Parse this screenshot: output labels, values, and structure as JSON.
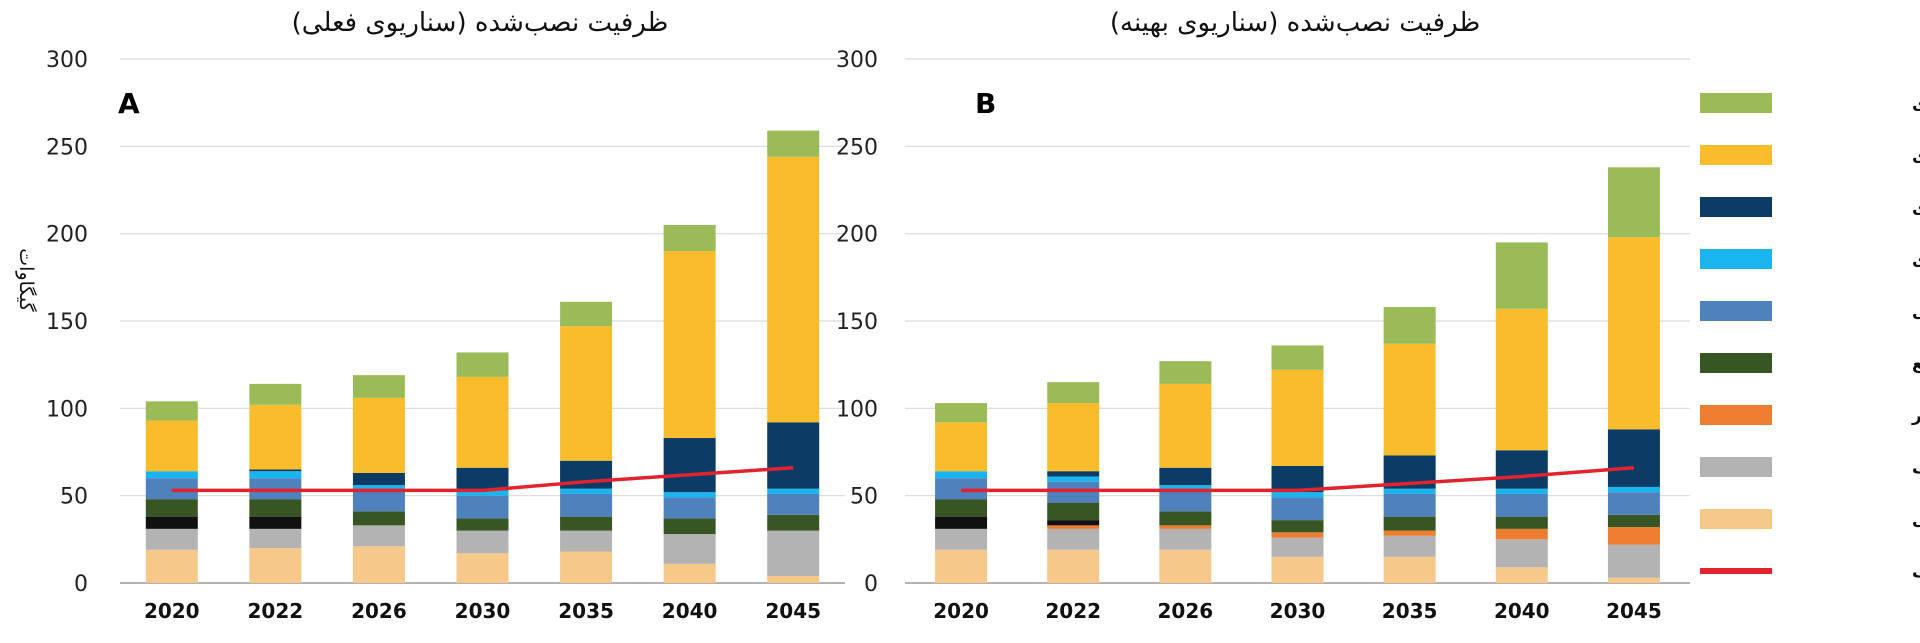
{
  "chart_data": [
    {
      "type": "bar",
      "stacked": true,
      "panel_label": "A",
      "title": "ظرفیت نصب‌شده (سناریوی فعلی)",
      "ylabel": "گیگاوات",
      "xlabel": "",
      "ylim": [
        0,
        300
      ],
      "yticks": [
        0,
        50,
        100,
        150,
        200,
        250,
        300
      ],
      "categories": [
        "2020",
        "2022",
        "2026",
        "2030",
        "2035",
        "2040",
        "2045"
      ],
      "series": [
        {
          "name": "نیروگاه سیکل ترکیبی",
          "color": "#f6c98a",
          "values": [
            19,
            20,
            21,
            17,
            18,
            11,
            4
          ]
        },
        {
          "name": "نیروگاه بار پیک",
          "color": "#b3b3b3",
          "values": [
            12,
            11,
            12,
            13,
            12,
            17,
            26
          ]
        },
        {
          "name": "نیروگاه بار متغیر",
          "color": "#ed7d31",
          "values": [
            0,
            0,
            0,
            0,
            0,
            0,
            0
          ]
        },
        {
          "name": "زغال سنگ",
          "color": "#111111",
          "values": [
            7,
            7,
            0,
            0,
            0,
            0,
            0
          ]
        },
        {
          "name": "سایر منابع",
          "color": "#375623",
          "values": [
            10,
            10,
            8,
            7,
            8,
            9,
            9
          ]
        },
        {
          "name": "برقابی",
          "color": "#4f81bd",
          "values": [
            12,
            12,
            12,
            13,
            13,
            12,
            12
          ]
        },
        {
          "name": "برقابی ذخیره تلمبه‌ای",
          "color": "#1ab4ee",
          "values": [
            4,
            4,
            3,
            3,
            3,
            3,
            3
          ]
        },
        {
          "name": "باتری",
          "color": "#0c3b66",
          "values": [
            0,
            1,
            7,
            13,
            16,
            31,
            38
          ]
        },
        {
          "name": "خورشیدی",
          "color": "#f9bd2c",
          "values": [
            29,
            37,
            43,
            52,
            77,
            107,
            152
          ]
        },
        {
          "name": "بادی",
          "color": "#9bbb59",
          "values": [
            11,
            12,
            13,
            14,
            14,
            15,
            15
          ]
        }
      ],
      "peak_load": {
        "name": "بار پیک",
        "color": "#e2232d",
        "values": [
          53,
          53,
          53,
          53,
          58,
          62,
          66
        ]
      }
    },
    {
      "type": "bar",
      "stacked": true,
      "panel_label": "B",
      "title": "ظرفیت نصب‌شده (سناریوی بهینه)",
      "ylabel": "",
      "xlabel": "",
      "ylim": [
        0,
        300
      ],
      "yticks": [
        0,
        50,
        100,
        150,
        200,
        250,
        300
      ],
      "categories": [
        "2020",
        "2022",
        "2026",
        "2030",
        "2035",
        "2040",
        "2045"
      ],
      "series": [
        {
          "name": "نیروگاه سیکل ترکیبی",
          "color": "#f6c98a",
          "values": [
            19,
            19,
            19,
            15,
            15,
            9,
            3
          ]
        },
        {
          "name": "نیروگاه بار پیک",
          "color": "#b3b3b3",
          "values": [
            12,
            12,
            12,
            11,
            12,
            16,
            19
          ]
        },
        {
          "name": "نیروگاه بار متغیر",
          "color": "#ed7d31",
          "values": [
            0,
            2,
            2,
            3,
            3,
            6,
            10
          ]
        },
        {
          "name": "زغال سنگ",
          "color": "#111111",
          "values": [
            7,
            3,
            0,
            0,
            0,
            0,
            0
          ]
        },
        {
          "name": "سایر منابع",
          "color": "#375623",
          "values": [
            10,
            10,
            8,
            7,
            8,
            7,
            7
          ]
        },
        {
          "name": "برقابی",
          "color": "#4f81bd",
          "values": [
            12,
            12,
            12,
            13,
            13,
            13,
            13
          ]
        },
        {
          "name": "برقابی ذخیره تلمبه‌ای",
          "color": "#1ab4ee",
          "values": [
            4,
            3,
            3,
            3,
            3,
            3,
            3
          ]
        },
        {
          "name": "باتری",
          "color": "#0c3b66",
          "values": [
            0,
            3,
            10,
            15,
            19,
            22,
            33
          ]
        },
        {
          "name": "خورشیدی",
          "color": "#f9bd2c",
          "values": [
            28,
            39,
            48,
            55,
            64,
            81,
            110
          ]
        },
        {
          "name": "بادی",
          "color": "#9bbb59",
          "values": [
            11,
            12,
            13,
            14,
            21,
            38,
            40
          ]
        }
      ],
      "peak_load": {
        "name": "بار پیک",
        "color": "#e2232d",
        "values": [
          53,
          53,
          53,
          53,
          57,
          61,
          66
        ]
      }
    }
  ],
  "legend": {
    "items": [
      {
        "label": "بادی",
        "color": "#9bbb59"
      },
      {
        "label": "خورشیدی",
        "color": "#f9bd2c"
      },
      {
        "label": "باتری",
        "color": "#0c3b66"
      },
      {
        "label": "برقابی ذخیره تلمبه‌ای",
        "color": "#1ab4ee"
      },
      {
        "label": "برقابی",
        "color": "#4f81bd"
      },
      {
        "label": "سایر منابع",
        "color": "#375623"
      },
      {
        "label": "نیروگاه بار متغیر",
        "color": "#ed7d31"
      },
      {
        "label": "نیروگاه بار پیک",
        "color": "#b3b3b3"
      },
      {
        "label": "نیروگاه سیکل ترکیبی",
        "color": "#f6c98a"
      },
      {
        "label": "بار پیک",
        "color": "#e2232d",
        "kind": "line"
      }
    ]
  }
}
